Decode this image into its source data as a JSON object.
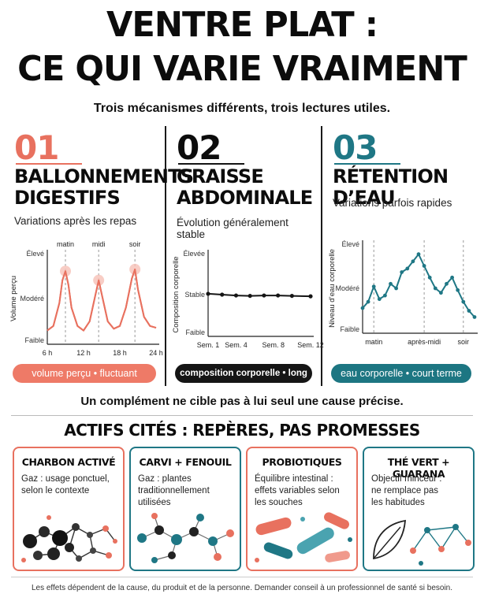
{
  "header": {
    "title_line1": "VENTRE PLAT :",
    "title_line2": "CE QUI VARIE VRAIMENT",
    "subtitle": "Trois mécanismes différents, trois lectures utiles."
  },
  "columns": [
    {
      "number": "01",
      "heading_line1": "BALLONNEMENTS",
      "heading_line2": "DIGESTIFS",
      "description": "Variations après les repas",
      "pill": "volume perçu • fluctuant",
      "color": "#e8715f",
      "chart_data": {
        "type": "line",
        "ylabel": "Volume perçu",
        "y_ticks": [
          "Faible",
          "Modéré",
          "Élevé"
        ],
        "x_ticks": [
          "6 h",
          "12 h",
          "18 h",
          "24 h"
        ],
        "markers": [
          "matin",
          "midi",
          "soir"
        ],
        "xlim": [
          6,
          24
        ],
        "x": [
          6,
          7,
          8,
          8.5,
          9,
          9.5,
          10,
          11,
          12,
          13,
          14,
          14.5,
          15,
          16,
          17,
          18,
          19,
          20,
          20.5,
          21,
          22,
          23,
          24
        ],
        "values": [
          0.15,
          0.2,
          0.45,
          0.7,
          0.8,
          0.65,
          0.4,
          0.2,
          0.15,
          0.25,
          0.55,
          0.7,
          0.55,
          0.25,
          0.17,
          0.2,
          0.4,
          0.72,
          0.82,
          0.6,
          0.3,
          0.2,
          0.18
        ],
        "peaks_x": [
          9,
          14.5,
          20.5
        ]
      }
    },
    {
      "number": "02",
      "heading_line1": "GRAISSE",
      "heading_line2": "ABDOMINALE",
      "description": "Évolution généralement stable",
      "pill": "composition corporelle • long terme",
      "color": "#151515",
      "chart_data": {
        "type": "line",
        "ylabel": "Composition corporelle",
        "y_ticks": [
          "Faible",
          "Stable",
          "Élevée"
        ],
        "x_ticks": [
          "Sem. 1",
          "Sem. 4",
          "Sem. 8",
          "Sem. 12"
        ],
        "xlim": [
          1,
          12
        ],
        "x": [
          1,
          2.5,
          4,
          5.5,
          7,
          8.5,
          10,
          12
        ],
        "values": [
          0.51,
          0.5,
          0.49,
          0.485,
          0.49,
          0.49,
          0.485,
          0.48
        ]
      }
    },
    {
      "number": "03",
      "heading_line1": "RÉTENTION D’EAU",
      "heading_line2": "",
      "description": "Variations parfois rapides",
      "pill": "eau corporelle • court terme",
      "color": "#1f7785",
      "chart_data": {
        "type": "line",
        "ylabel": "Niveau d’eau corporelle",
        "y_ticks": [
          "Faible",
          "Modéré",
          "Élevé"
        ],
        "x_ticks": [
          "matin",
          "après-midi",
          "soir"
        ],
        "xlim": [
          0,
          20
        ],
        "x": [
          0,
          1,
          2,
          3,
          4,
          5,
          6,
          7,
          8,
          9,
          10,
          11,
          12,
          13,
          14,
          15,
          16,
          17,
          18,
          19,
          20
        ],
        "values": [
          0.28,
          0.35,
          0.52,
          0.38,
          0.42,
          0.55,
          0.5,
          0.68,
          0.72,
          0.8,
          0.88,
          0.75,
          0.62,
          0.5,
          0.45,
          0.55,
          0.62,
          0.48,
          0.35,
          0.25,
          0.18
        ]
      }
    }
  ],
  "note": "Un complément ne cible pas à lui seul une cause précise.",
  "section_title": "ACTIFS CITÉS : REPÈRES, PAS PROMESSES",
  "cards": [
    {
      "title": "CHARBON ACTIVÉ",
      "text_lines": [
        "Gaz : usage ponctuel,",
        "selon le contexte"
      ],
      "border": "#e8715f",
      "art_icon": "carbon-molecule-icon"
    },
    {
      "title": "CARVI + FENOUIL",
      "text_lines": [
        "Gaz : plantes",
        "traditionnellement",
        "utilisées"
      ],
      "border": "#1f7785",
      "art_icon": "molecule-network-icon"
    },
    {
      "title": "PROBIOTIQUES",
      "text_lines": [
        "Équilibre intestinal :",
        "effets variables selon",
        "les souches"
      ],
      "border": "#e8715f",
      "art_icon": "bacteria-icon"
    },
    {
      "title": "THÉ VERT + GUARANA",
      "text_lines": [
        "Objectif minceur :",
        "ne remplace pas",
        "les habitudes"
      ],
      "border": "#1f7785",
      "art_icon": "leaf-network-icon"
    }
  ],
  "footer": "Les effets dépendent de la cause, du produit et de la personne. Demander conseil à un professionnel de santé si besoin."
}
